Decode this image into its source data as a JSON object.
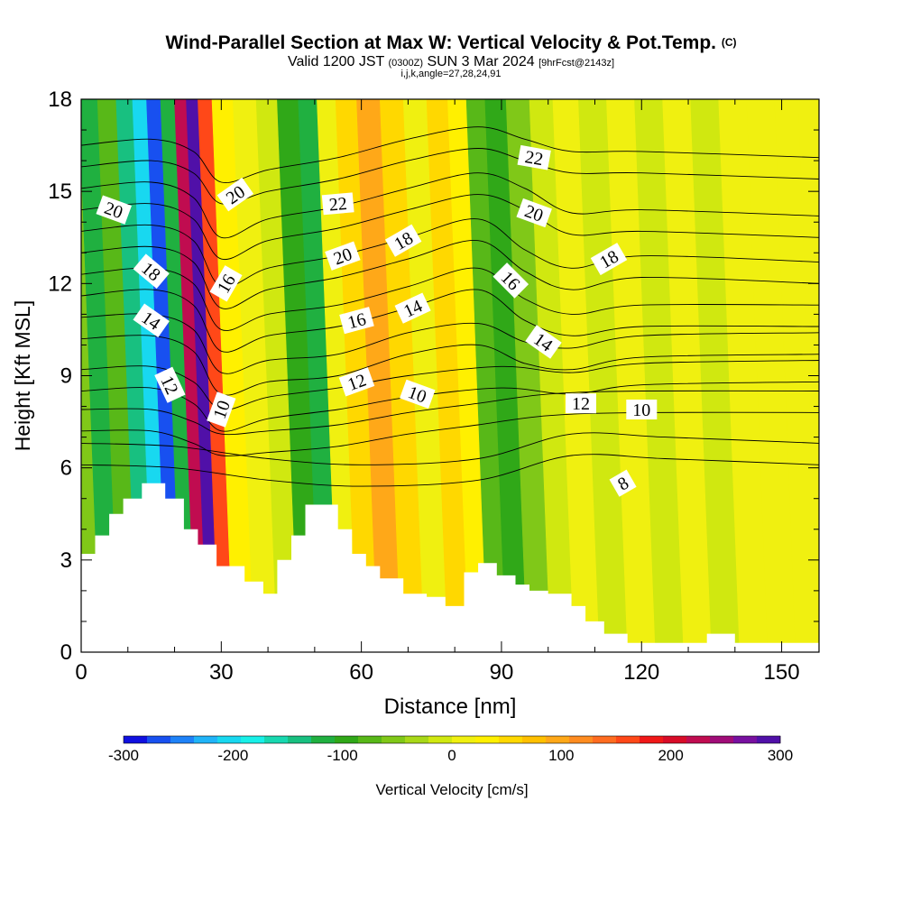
{
  "titles": {
    "line1": "Wind-Parallel Section at Max W: Vertical Velocity & Pot.Temp.",
    "line1_unit": "(C)",
    "line2_valid": "Valid 1200 JST",
    "line2_utc": "(0300Z)",
    "line2_date": "SUN 3 Mar 2024",
    "line2_fcst": "[9hrFcst@2143z]",
    "line3": "i,j,k,angle=27,28,24,91"
  },
  "chart_data": {
    "type": "heatmap",
    "title": "Wind-Parallel Section at Max W: Vertical Velocity & Pot.Temp. (C)",
    "xlabel": "Distance [nm]",
    "ylabel": "Height [Kft MSL]",
    "xlim": [
      0,
      158
    ],
    "ylim": [
      0,
      18
    ],
    "xticks": [
      0,
      30,
      60,
      90,
      120,
      150
    ],
    "yticks": [
      0,
      3,
      6,
      9,
      12,
      15,
      18
    ],
    "colorbar": {
      "label": "Vertical Velocity [cm/s]",
      "ticks": [
        -300,
        -200,
        -100,
        0,
        100,
        200,
        300
      ],
      "colors": [
        "#1010e0",
        "#1850f0",
        "#1e82f8",
        "#20b4f8",
        "#18d8f0",
        "#18f0e8",
        "#18d8b0",
        "#18c080",
        "#20b040",
        "#30a818",
        "#58b818",
        "#80c818",
        "#a8d818",
        "#d0e810",
        "#f0f010",
        "#fff000",
        "#ffd800",
        "#ffc000",
        "#ffa818",
        "#ff8c20",
        "#ff6c20",
        "#ff4818",
        "#f01818",
        "#d80c28",
        "#c00c50",
        "#a00c78",
        "#7810a0",
        "#5010a8"
      ]
    },
    "velocity_columns": [
      {
        "x": 2,
        "w": -60
      },
      {
        "x": 6,
        "w": -120
      },
      {
        "x": 10,
        "w": -80
      },
      {
        "x": 14,
        "w": -150
      },
      {
        "x": 17,
        "w": -200
      },
      {
        "x": 20,
        "w": -270
      },
      {
        "x": 23,
        "w": -120
      },
      {
        "x": 26,
        "w": 220
      },
      {
        "x": 28,
        "w": 300
      },
      {
        "x": 31,
        "w": 150
      },
      {
        "x": 34,
        "w": 30
      },
      {
        "x": 40,
        "w": 10
      },
      {
        "x": 44,
        "w": -20
      },
      {
        "x": 49,
        "w": -90
      },
      {
        "x": 53,
        "w": -110
      },
      {
        "x": 57,
        "w": 10
      },
      {
        "x": 61,
        "w": 60
      },
      {
        "x": 66,
        "w": 90
      },
      {
        "x": 71,
        "w": 50
      },
      {
        "x": 76,
        "w": 10
      },
      {
        "x": 81,
        "w": 60
      },
      {
        "x": 85,
        "w": 30
      },
      {
        "x": 89,
        "w": -80
      },
      {
        "x": 93,
        "w": -100
      },
      {
        "x": 98,
        "w": -60
      },
      {
        "x": 103,
        "w": -20
      },
      {
        "x": 108,
        "w": 0
      },
      {
        "x": 114,
        "w": -10
      },
      {
        "x": 120,
        "w": 10
      },
      {
        "x": 126,
        "w": -10
      },
      {
        "x": 132,
        "w": 0
      },
      {
        "x": 138,
        "w": -10
      },
      {
        "x": 144,
        "w": 10
      },
      {
        "x": 150,
        "w": 0
      },
      {
        "x": 156,
        "w": 10
      }
    ],
    "terrain_kft": [
      [
        0,
        3.2
      ],
      [
        3,
        3.8
      ],
      [
        6,
        4.5
      ],
      [
        9,
        5.0
      ],
      [
        13,
        5.5
      ],
      [
        18,
        5.0
      ],
      [
        22,
        4.0
      ],
      [
        25,
        3.5
      ],
      [
        29,
        2.8
      ],
      [
        35,
        2.3
      ],
      [
        39,
        1.9
      ],
      [
        42,
        3.0
      ],
      [
        45,
        3.8
      ],
      [
        48,
        4.8
      ],
      [
        55,
        4.0
      ],
      [
        58,
        3.2
      ],
      [
        61,
        2.8
      ],
      [
        64,
        2.4
      ],
      [
        69,
        1.9
      ],
      [
        74,
        1.8
      ],
      [
        78,
        1.5
      ],
      [
        82,
        2.6
      ],
      [
        85,
        2.9
      ],
      [
        89,
        2.5
      ],
      [
        93,
        2.2
      ],
      [
        96,
        2.0
      ],
      [
        100,
        1.9
      ],
      [
        105,
        1.5
      ],
      [
        108,
        1.0
      ],
      [
        112,
        0.6
      ],
      [
        117,
        0.3
      ],
      [
        122,
        0.3
      ],
      [
        128,
        0.3
      ],
      [
        134,
        0.6
      ],
      [
        140,
        0.3
      ],
      [
        150,
        0.3
      ],
      [
        158,
        0.3
      ]
    ],
    "theta_contours": [
      {
        "level": 8,
        "points": [
          [
            0,
            6.1
          ],
          [
            20,
            6.0
          ],
          [
            40,
            5.6
          ],
          [
            60,
            5.4
          ],
          [
            85,
            5.6
          ],
          [
            105,
            6.4
          ],
          [
            125,
            6.3
          ],
          [
            158,
            6.1
          ]
        ]
      },
      {
        "level": 10,
        "points": [
          [
            0,
            7.2
          ],
          [
            15,
            7.2
          ],
          [
            24,
            6.8
          ],
          [
            30,
            6.4
          ],
          [
            40,
            6.5
          ],
          [
            55,
            6.7
          ],
          [
            70,
            7.1
          ],
          [
            85,
            7.4
          ],
          [
            100,
            7.7
          ],
          [
            120,
            7.8
          ],
          [
            158,
            7.8
          ]
        ]
      },
      {
        "level": 12,
        "points": [
          [
            0,
            8.5
          ],
          [
            15,
            8.6
          ],
          [
            24,
            8.1
          ],
          [
            30,
            7.2
          ],
          [
            40,
            7.6
          ],
          [
            55,
            7.9
          ],
          [
            70,
            8.3
          ],
          [
            90,
            8.6
          ],
          [
            105,
            8.4
          ],
          [
            120,
            8.7
          ],
          [
            158,
            8.8
          ]
        ]
      },
      {
        "level": 14,
        "points": [
          [
            0,
            10.2
          ],
          [
            15,
            10.3
          ],
          [
            24,
            9.8
          ],
          [
            30,
            8.4
          ],
          [
            40,
            8.8
          ],
          [
            55,
            9.0
          ],
          [
            70,
            9.7
          ],
          [
            85,
            10.0
          ],
          [
            95,
            9.4
          ],
          [
            105,
            9.2
          ],
          [
            120,
            9.6
          ],
          [
            158,
            9.7
          ]
        ]
      },
      {
        "level": 16,
        "points": [
          [
            0,
            11.6
          ],
          [
            15,
            11.8
          ],
          [
            24,
            11.3
          ],
          [
            30,
            9.8
          ],
          [
            40,
            10.3
          ],
          [
            55,
            10.6
          ],
          [
            70,
            11.2
          ],
          [
            85,
            11.8
          ],
          [
            95,
            10.8
          ],
          [
            105,
            10.3
          ],
          [
            120,
            10.6
          ],
          [
            158,
            10.6
          ]
        ]
      },
      {
        "level": 18,
        "points": [
          [
            0,
            13.0
          ],
          [
            15,
            13.2
          ],
          [
            24,
            12.7
          ],
          [
            30,
            11.2
          ],
          [
            40,
            11.8
          ],
          [
            55,
            12.2
          ],
          [
            70,
            12.8
          ],
          [
            85,
            13.4
          ],
          [
            95,
            12.4
          ],
          [
            105,
            11.8
          ],
          [
            120,
            12.2
          ],
          [
            158,
            12.0
          ]
        ]
      },
      {
        "level": 20,
        "points": [
          [
            0,
            14.4
          ],
          [
            15,
            14.6
          ],
          [
            24,
            14.1
          ],
          [
            30,
            12.8
          ],
          [
            40,
            13.4
          ],
          [
            55,
            13.8
          ],
          [
            70,
            14.4
          ],
          [
            85,
            14.9
          ],
          [
            95,
            14.4
          ],
          [
            105,
            13.6
          ],
          [
            120,
            13.7
          ],
          [
            158,
            13.5
          ]
        ]
      },
      {
        "level": 22,
        "points": [
          [
            0,
            15.8
          ],
          [
            15,
            16.0
          ],
          [
            24,
            15.6
          ],
          [
            30,
            14.6
          ],
          [
            40,
            15.0
          ],
          [
            55,
            15.4
          ],
          [
            70,
            16.0
          ],
          [
            85,
            16.4
          ],
          [
            95,
            16.0
          ],
          [
            105,
            15.6
          ],
          [
            120,
            15.6
          ],
          [
            158,
            15.4
          ]
        ]
      }
    ],
    "contour_labels": [
      {
        "text": "20",
        "x": 7,
        "y": 14.4,
        "rot": 20
      },
      {
        "text": "18",
        "x": 15,
        "y": 12.4,
        "rot": 40
      },
      {
        "text": "14",
        "x": 15,
        "y": 10.8,
        "rot": 35
      },
      {
        "text": "12",
        "x": 19,
        "y": 8.7,
        "rot": 65
      },
      {
        "text": "20",
        "x": 33,
        "y": 14.9,
        "rot": -35
      },
      {
        "text": "16",
        "x": 31,
        "y": 12.0,
        "rot": -60
      },
      {
        "text": "10",
        "x": 30,
        "y": 7.9,
        "rot": -70
      },
      {
        "text": "22",
        "x": 55,
        "y": 14.6,
        "rot": -5
      },
      {
        "text": "20",
        "x": 56,
        "y": 12.9,
        "rot": -20
      },
      {
        "text": "18",
        "x": 69,
        "y": 13.4,
        "rot": -30
      },
      {
        "text": "16",
        "x": 59,
        "y": 10.8,
        "rot": -15
      },
      {
        "text": "14",
        "x": 71,
        "y": 11.2,
        "rot": -25
      },
      {
        "text": "12",
        "x": 59,
        "y": 8.8,
        "rot": -20
      },
      {
        "text": "10",
        "x": 72,
        "y": 8.4,
        "rot": 20
      },
      {
        "text": "22",
        "x": 97,
        "y": 16.1,
        "rot": 10
      },
      {
        "text": "20",
        "x": 97,
        "y": 14.3,
        "rot": 20
      },
      {
        "text": "16",
        "x": 92,
        "y": 12.1,
        "rot": 45
      },
      {
        "text": "14",
        "x": 99,
        "y": 10.1,
        "rot": 35
      },
      {
        "text": "12",
        "x": 107,
        "y": 8.1,
        "rot": 0
      },
      {
        "text": "18",
        "x": 113,
        "y": 12.8,
        "rot": -30
      },
      {
        "text": "10",
        "x": 120,
        "y": 7.9,
        "rot": 0
      },
      {
        "text": "8",
        "x": 116,
        "y": 5.5,
        "rot": -30
      }
    ]
  }
}
